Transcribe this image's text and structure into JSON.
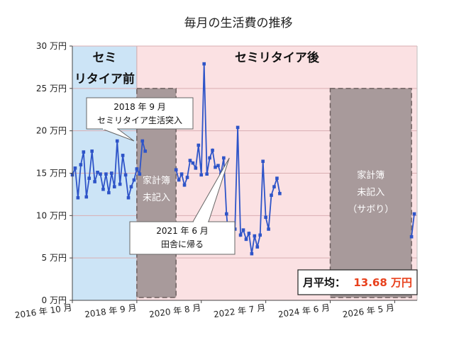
{
  "chart_data": {
    "type": "line",
    "title": "毎月の生活費の推移",
    "y_unit": "万円",
    "ylim": [
      0,
      30
    ],
    "y_ticks": [
      {
        "value": 0,
        "label": "0 万円"
      },
      {
        "value": 5,
        "label": "5 万円"
      },
      {
        "value": 10,
        "label": "10 万円"
      },
      {
        "value": 15,
        "label": "15 万円"
      },
      {
        "value": 20,
        "label": "20 万円"
      },
      {
        "value": 25,
        "label": "25 万円"
      },
      {
        "value": 30,
        "label": "30 万円"
      }
    ],
    "x_start": "2016-10",
    "x_end": "2027-01",
    "x_ticks": [
      {
        "month": "2016-10",
        "label": "2016 年 10 月"
      },
      {
        "month": "2018-09",
        "label": "2018 年 9 月"
      },
      {
        "month": "2020-08",
        "label": "2020 年 8 月"
      },
      {
        "month": "2022-07",
        "label": "2022 年 7 月"
      },
      {
        "month": "2024-06",
        "label": "2024 年 6 月"
      },
      {
        "month": "2026-05",
        "label": "2026 年 5 月"
      }
    ],
    "regions": [
      {
        "label_lines": [
          "セミ",
          "リタイア前"
        ],
        "from": "2016-10",
        "to": "2018-09",
        "color": "#cce4f6"
      },
      {
        "label_lines": [
          "セミリタイア後"
        ],
        "from": "2018-09",
        "to": "2027-01",
        "color": "#fbe1e3"
      }
    ],
    "missing_blocks": [
      {
        "label_lines": [
          "家計簿",
          "未記入"
        ],
        "from": "2018-09",
        "to": "2019-11",
        "top": 25
      },
      {
        "label_lines": [
          "家計簿",
          "未記入",
          "（サボり）"
        ],
        "from": "2024-06",
        "to": "2026-11",
        "top": 25
      }
    ],
    "callouts": [
      {
        "lines": [
          "2018 年 9 月",
          "セミリタイア生活突入"
        ],
        "month": "2018-08",
        "value": 18.8
      },
      {
        "lines": [
          "2021 年 6 月",
          "田舎に帰る"
        ],
        "month": "2021-06",
        "value": 16.8
      }
    ],
    "summary": {
      "label": "月平均：",
      "value": "13.68 万円",
      "value_color": "#e8401c"
    },
    "series": [
      {
        "color": "#2e54c8",
        "segments": [
          {
            "start": "2016-10",
            "values": [
              14.8,
              15.6,
              12.1,
              16.0,
              17.5,
              12.2,
              14.4,
              17.6,
              14.0,
              15.1,
              14.9,
              13.1,
              14.9,
              12.7,
              15.0,
              13.4,
              18.8,
              13.7,
              17.1,
              14.8,
              12.1,
              13.4,
              14.2,
              15.5,
              14.9,
              18.8,
              17.6
            ]
          },
          {
            "start": "2019-11",
            "values": [
              15.4,
              14.2,
              14.9,
              13.6,
              14.5,
              16.5,
              16.2,
              15.6,
              18.3,
              14.8,
              27.9,
              14.9,
              16.8,
              17.7,
              15.7,
              15.9,
              14.9,
              16.8,
              10.2,
              6.3,
              8.6,
              8.4,
              20.4,
              7.7,
              8.3,
              7.2,
              7.9,
              5.5,
              7.6,
              6.3,
              7.7,
              16.4,
              9.8,
              8.4,
              12.4,
              13.4,
              14.4,
              12.6
            ]
          },
          {
            "start": "2026-11",
            "values": [
              7.5,
              10.2
            ]
          }
        ]
      }
    ]
  }
}
